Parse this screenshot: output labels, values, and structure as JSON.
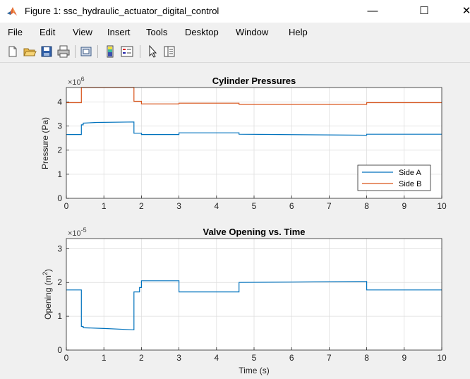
{
  "window": {
    "title": "Figure 1: ssc_hydraulic_actuator_digital_control",
    "minimize_glyph": "—",
    "maximize_glyph": "☐",
    "close_glyph": "✕"
  },
  "menu": {
    "items": [
      "File",
      "Edit",
      "View",
      "Insert",
      "Tools",
      "Desktop",
      "Window",
      "Help"
    ]
  },
  "toolbar": {
    "icons": [
      "new-figure-icon",
      "open-file-icon",
      "save-icon",
      "print-icon",
      "link-icon",
      "colorbar-icon",
      "legend-icon",
      "pointer-icon",
      "property-inspector-icon"
    ]
  },
  "colors": {
    "side_a": "#0072bd",
    "side_b": "#d95319",
    "grid": "#dcdcdc",
    "axes": "#262626"
  },
  "chart_data": [
    {
      "type": "line",
      "title": "Cylinder Pressures",
      "xlabel": "",
      "ylabel": "Pressure (Pa)",
      "y_multiplier": "×10",
      "y_exponent": "6",
      "xlim": [
        0,
        10
      ],
      "ylim": [
        0,
        4.6
      ],
      "xticks": [
        "0",
        "1",
        "2",
        "3",
        "4",
        "5",
        "6",
        "7",
        "8",
        "9",
        "10"
      ],
      "yticks": [
        "0",
        "1",
        "2",
        "3",
        "4"
      ],
      "grid": true,
      "legend_position": "bottom-right",
      "series": [
        {
          "name": "Side A",
          "x": [
            0,
            0.4,
            0.4,
            0.45,
            0.45,
            0.8,
            1.8,
            1.8,
            2.0,
            2.0,
            3.0,
            3.0,
            4.6,
            4.6,
            8.0,
            8.0,
            10
          ],
          "y": [
            2.65,
            2.65,
            3.05,
            3.05,
            3.12,
            3.15,
            3.17,
            2.7,
            2.7,
            2.65,
            2.65,
            2.72,
            2.72,
            2.66,
            2.62,
            2.66,
            2.66
          ]
        },
        {
          "name": "Side B",
          "x": [
            0,
            0.4,
            0.4,
            1.8,
            1.8,
            2.0,
            2.0,
            3.0,
            3.0,
            4.6,
            4.6,
            8.0,
            8.0,
            10
          ],
          "y": [
            3.97,
            3.97,
            4.6,
            4.6,
            4.03,
            4.03,
            3.92,
            3.92,
            3.95,
            3.95,
            3.9,
            3.9,
            3.97,
            3.97
          ]
        }
      ]
    },
    {
      "type": "line",
      "title": "Valve Opening vs. Time",
      "xlabel": "Time (s)",
      "ylabel_main": "Opening (m",
      "ylabel_sup": "2",
      "ylabel_end": ")",
      "y_multiplier": "×10",
      "y_exponent": "-5",
      "xlim": [
        0,
        10
      ],
      "ylim": [
        0,
        3.3
      ],
      "xticks": [
        "0",
        "1",
        "2",
        "3",
        "4",
        "5",
        "6",
        "7",
        "8",
        "9",
        "10"
      ],
      "yticks": [
        "0",
        "1",
        "2",
        "3"
      ],
      "grid": true,
      "series": [
        {
          "x": [
            0,
            0.4,
            0.4,
            0.45,
            0.45,
            1.0,
            1.8,
            1.8,
            1.95,
            1.95,
            2.0,
            2.0,
            3.0,
            3.0,
            4.6,
            4.6,
            8.0,
            8.0,
            10
          ],
          "y": [
            1.78,
            1.78,
            0.7,
            0.7,
            0.66,
            0.64,
            0.6,
            1.72,
            1.72,
            1.85,
            1.85,
            2.05,
            2.05,
            1.72,
            1.72,
            2.0,
            2.03,
            1.78,
            1.78
          ]
        }
      ]
    }
  ]
}
